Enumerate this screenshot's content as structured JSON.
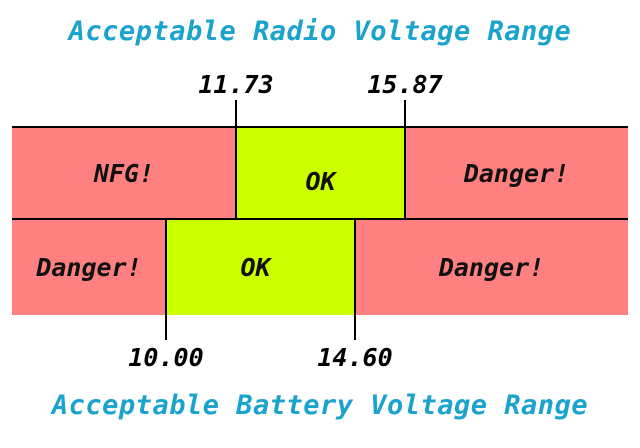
{
  "radio": {
    "title": "Acceptable Radio Voltage Range",
    "low_label": "11.73",
    "high_label": "15.87",
    "zones": [
      "NFG!",
      "OK",
      "Danger!"
    ]
  },
  "battery": {
    "title": "Acceptable Battery Voltage Range",
    "low_label": "10.00",
    "high_label": "14.60",
    "zones": [
      "Danger!",
      "OK",
      "Danger!"
    ]
  },
  "colors": {
    "title": "#1aa3cc",
    "danger": "#ff8080",
    "ok": "#ccff00",
    "line": "#000000"
  }
}
